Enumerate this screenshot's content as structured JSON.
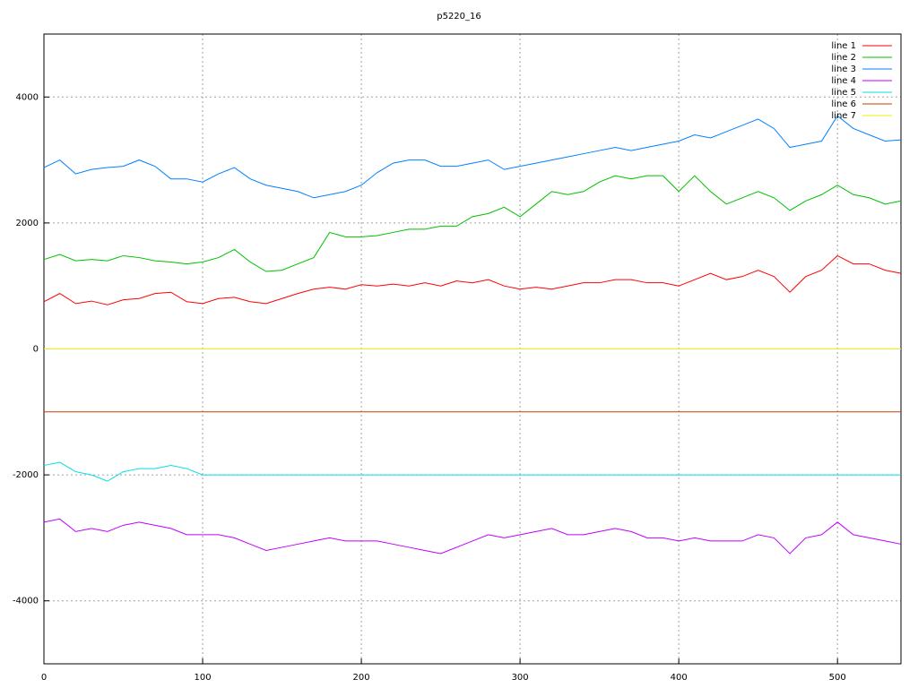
{
  "chart_data": {
    "type": "line",
    "title": "p5220_16",
    "x": [
      0,
      10,
      20,
      30,
      40,
      50,
      60,
      70,
      80,
      90,
      100,
      110,
      120,
      130,
      140,
      150,
      160,
      170,
      180,
      190,
      200,
      210,
      220,
      230,
      240,
      250,
      260,
      270,
      280,
      290,
      300,
      310,
      320,
      330,
      340,
      350,
      360,
      370,
      380,
      390,
      400,
      410,
      420,
      430,
      440,
      450,
      460,
      470,
      480,
      490,
      500,
      510,
      520,
      530,
      540
    ],
    "xlim": [
      0,
      540
    ],
    "xticks": [
      0,
      100,
      200,
      300,
      400,
      500
    ],
    "ylim": [
      -5000,
      5000
    ],
    "yticks": [
      -4000,
      -2000,
      0,
      2000,
      4000
    ],
    "grid": true,
    "legend": "top-right",
    "series": [
      {
        "name": "line 1",
        "color": "#ff0000",
        "values": [
          750,
          880,
          720,
          760,
          700,
          780,
          800,
          880,
          900,
          750,
          720,
          800,
          820,
          750,
          720,
          800,
          880,
          950,
          980,
          950,
          1020,
          1000,
          1030,
          1000,
          1050,
          1000,
          1080,
          1050,
          1100,
          1000,
          950,
          980,
          950,
          1000,
          1050,
          1050,
          1100,
          1100,
          1050,
          1050,
          1000,
          1100,
          1200,
          1100,
          1150,
          1250,
          1150,
          900,
          1150,
          1250,
          1480,
          1350,
          1350,
          1250,
          1200
        ]
      },
      {
        "name": "line 2",
        "color": "#00c000",
        "values": [
          1420,
          1500,
          1400,
          1420,
          1400,
          1480,
          1450,
          1400,
          1380,
          1350,
          1380,
          1450,
          1580,
          1380,
          1230,
          1250,
          1350,
          1450,
          1850,
          1780,
          1780,
          1800,
          1850,
          1900,
          1900,
          1950,
          1950,
          2100,
          2150,
          2250,
          2100,
          2300,
          2500,
          2450,
          2500,
          2650,
          2750,
          2700,
          2750,
          2750,
          2500,
          2750,
          2500,
          2300,
          2400,
          2500,
          2400,
          2200,
          2350,
          2450,
          2600,
          2450,
          2400,
          2300,
          2350
        ]
      },
      {
        "name": "line 3",
        "color": "#0080ff",
        "values": [
          2880,
          3000,
          2780,
          2850,
          2880,
          2900,
          3000,
          2900,
          2700,
          2700,
          2650,
          2780,
          2880,
          2700,
          2600,
          2550,
          2500,
          2400,
          2450,
          2500,
          2600,
          2800,
          2950,
          3000,
          3000,
          2900,
          2900,
          2950,
          3000,
          2850,
          2900,
          2950,
          3000,
          3050,
          3100,
          3150,
          3200,
          3150,
          3200,
          3250,
          3300,
          3400,
          3350,
          3450,
          3550,
          3650,
          3500,
          3200,
          3250,
          3300,
          3700,
          3500,
          3400,
          3300,
          3320
        ]
      },
      {
        "name": "line 4",
        "color": "#c000ff",
        "values": [
          -2750,
          -2700,
          -2900,
          -2850,
          -2900,
          -2800,
          -2750,
          -2800,
          -2850,
          -2950,
          -2950,
          -2950,
          -3000,
          -3100,
          -3200,
          -3150,
          -3100,
          -3050,
          -3000,
          -3050,
          -3050,
          -3050,
          -3100,
          -3150,
          -3200,
          -3250,
          -3150,
          -3050,
          -2950,
          -3000,
          -2950,
          -2900,
          -2850,
          -2950,
          -2950,
          -2900,
          -2850,
          -2900,
          -3000,
          -3000,
          -3050,
          -3000,
          -3050,
          -3050,
          -3050,
          -2950,
          -3000,
          -3250,
          -3000,
          -2950,
          -2750,
          -2950,
          -3000,
          -3050,
          -3100
        ]
      },
      {
        "name": "line 5",
        "color": "#00e0e0",
        "values": [
          -1850,
          -1800,
          -1950,
          -2000,
          -2100,
          -1950,
          -1900,
          -1900,
          -1850,
          -1900,
          -2000,
          -2000,
          -2000,
          -2000,
          -2000,
          -2000,
          -2000,
          -2000,
          -2000,
          -2000,
          -2000,
          -2000,
          -2000,
          -2000,
          -2000,
          -2000,
          -2000,
          -2000,
          -2000,
          -2000,
          -2000,
          -2000,
          -2000,
          -2000,
          -2000,
          -2000,
          -2000,
          -2000,
          -2000,
          -2000,
          -2000,
          -2000,
          -2000,
          -2000,
          -2000,
          -2000,
          -2000,
          -2000,
          -2000,
          -2000,
          -2000,
          -2000,
          -2000,
          -2000,
          -2000
        ]
      },
      {
        "name": "line 6",
        "color": "#c04000",
        "values": [
          -1000,
          -1000,
          -1000,
          -1000,
          -1000,
          -1000,
          -1000,
          -1000,
          -1000,
          -1000,
          -1000,
          -1000,
          -1000,
          -1000,
          -1000,
          -1000,
          -1000,
          -1000,
          -1000,
          -1000,
          -1000,
          -1000,
          -1000,
          -1000,
          -1000,
          -1000,
          -1000,
          -1000,
          -1000,
          -1000,
          -1000,
          -1000,
          -1000,
          -1000,
          -1000,
          -1000,
          -1000,
          -1000,
          -1000,
          -1000,
          -1000,
          -1000,
          -1000,
          -1000,
          -1000,
          -1000,
          -1000,
          -1000,
          -1000,
          -1000,
          -1000,
          -1000,
          -1000,
          -1000,
          -1000
        ]
      },
      {
        "name": "line 7",
        "color": "#eeee00",
        "values": [
          0,
          0,
          0,
          0,
          0,
          0,
          0,
          0,
          0,
          0,
          0,
          0,
          0,
          0,
          0,
          0,
          0,
          0,
          0,
          0,
          0,
          0,
          0,
          0,
          0,
          0,
          0,
          0,
          0,
          0,
          0,
          0,
          0,
          0,
          0,
          0,
          0,
          0,
          0,
          0,
          0,
          0,
          0,
          0,
          0,
          0,
          0,
          0,
          0,
          0,
          0,
          0,
          0,
          0,
          0
        ]
      }
    ]
  }
}
